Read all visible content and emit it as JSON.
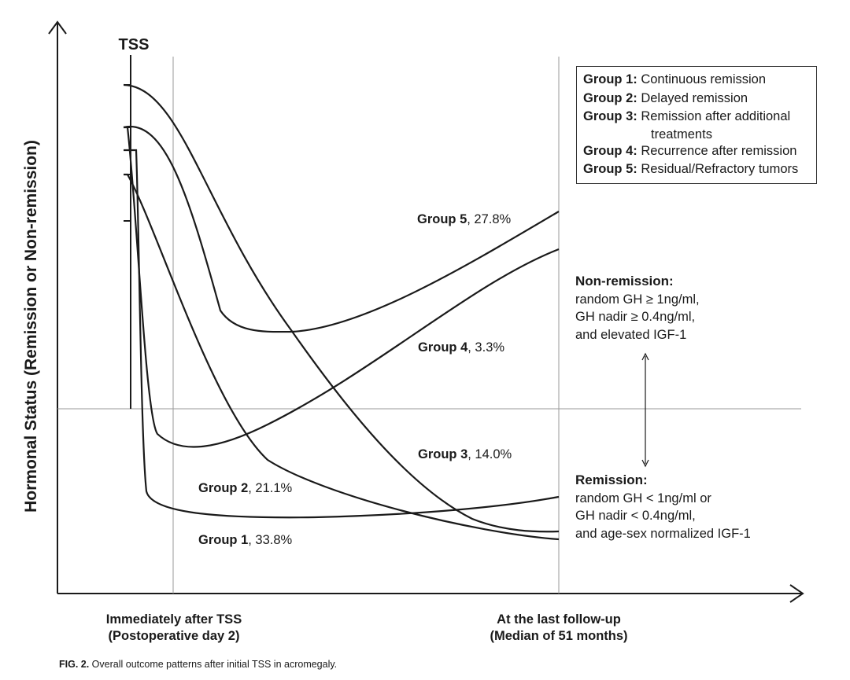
{
  "y_axis_label": "Hormonal Status (Remission or Non-remission)",
  "tss_label": "TSS",
  "x_labels": [
    {
      "line1": "Immediately after TSS",
      "line2": "(Postoperative day 2)"
    },
    {
      "line1": "At the last follow-up",
      "line2": "(Median of 51 months)"
    }
  ],
  "legend": [
    {
      "key": "Group 1:",
      "text": "Continuous remission"
    },
    {
      "key": "Group 2:",
      "text": "Delayed remission"
    },
    {
      "key": "Group 3:",
      "text": "Remission after additional",
      "text2": "treatments"
    },
    {
      "key": "Group 4:",
      "text": "Recurrence after remission"
    },
    {
      "key": "Group 5:",
      "text": "Residual/Refractory tumors"
    }
  ],
  "groups": [
    {
      "name": "Group 1",
      "pct": ", 33.8%"
    },
    {
      "name": "Group 2",
      "pct": ", 21.1%"
    },
    {
      "name": "Group 3",
      "pct": ", 14.0%"
    },
    {
      "name": "Group 4",
      "pct": ", 3.3%"
    },
    {
      "name": "Group 5",
      "pct": ", 27.8%"
    }
  ],
  "non_remission": {
    "title": "Non-remission:",
    "lines": [
      "random GH ≥ 1ng/ml,",
      "GH nadir ≥ 0.4ng/ml,",
      "and elevated IGF-1"
    ]
  },
  "remission": {
    "title": "Remission:",
    "lines": [
      "random GH < 1ng/ml or",
      "GH nadir < 0.4ng/ml,",
      "and age-sex normalized IGF-1"
    ]
  },
  "caption": {
    "label": "FIG. 2.",
    "text": " Overall outcome patterns after initial TSS in acromegaly."
  },
  "colors": {
    "line": "#1a1a1a",
    "grid": "#9a9a9a"
  }
}
